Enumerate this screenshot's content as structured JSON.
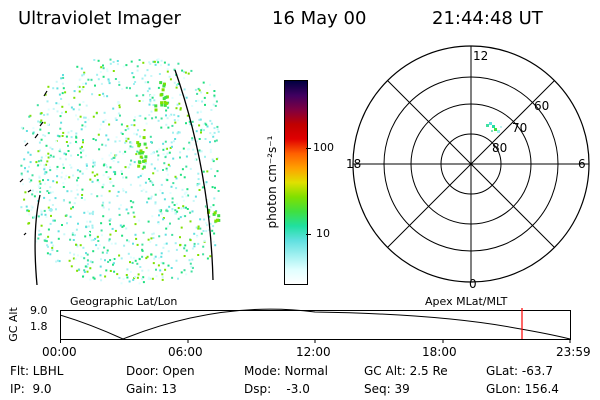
{
  "header": {
    "instrument": "Ultraviolet Imager",
    "date": "16 May 00",
    "time": "21:44:48 UT"
  },
  "colorbar": {
    "label": "photon cm⁻²s⁻¹",
    "ticks": [
      "100",
      "10"
    ],
    "colors": [
      "#000040",
      "#400060",
      "#800040",
      "#c00000",
      "#e00000",
      "#ff6000",
      "#ffa000",
      "#e0e000",
      "#80e000",
      "#40e040",
      "#20e0a0",
      "#60e0e0",
      "#a0f0f0",
      "#e0ffff",
      "#ffffff"
    ]
  },
  "polar_plot": {
    "mlt_labels": {
      "top": "12",
      "bottom": "0",
      "left": "18",
      "right": "6"
    },
    "lat_labels": [
      "60",
      "70",
      "80"
    ]
  },
  "timeline": {
    "left_label": "Geographic Lat/Lon",
    "right_label": "Apex MLat/MLT",
    "axis_title": "GC Alt",
    "y_ticks": [
      "9.0",
      "1.8"
    ],
    "x_ticks": [
      "00:00",
      "06:00",
      "12:00",
      "18:00",
      "23:59"
    ],
    "marker_color": "#ff0000"
  },
  "footer": {
    "row1": [
      "Flt: LBHL",
      "Door: Open",
      "Mode: Normal",
      "GC Alt: 2.5 Re",
      "GLat: -63.7"
    ],
    "row2": [
      "IP:  9.0",
      "Gain: 13",
      "Dsp:    -3.0",
      "Seq: 39",
      "GLon: 156.4"
    ]
  }
}
